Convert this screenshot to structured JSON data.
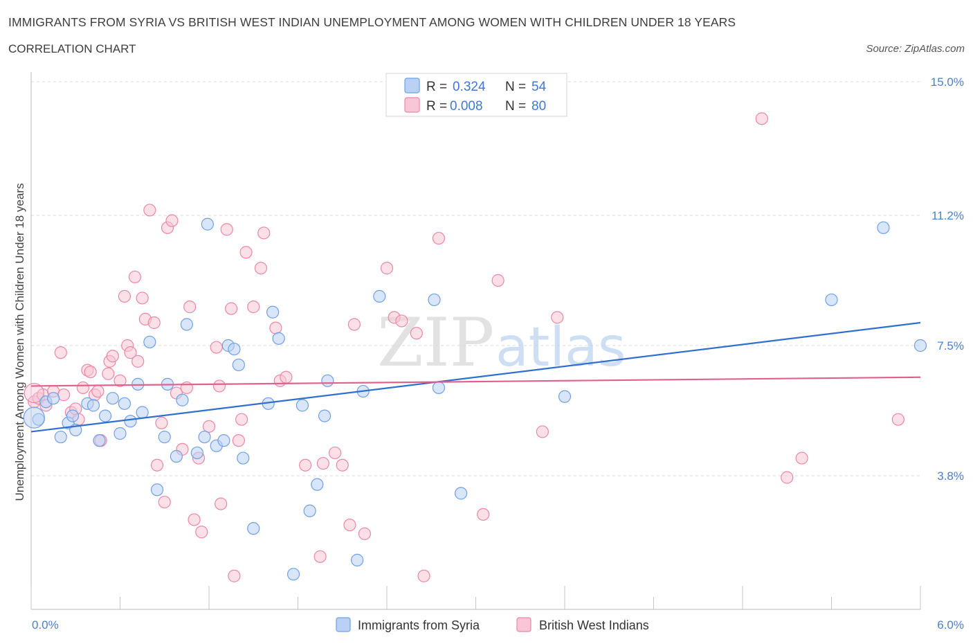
{
  "header": {
    "title": "IMMIGRANTS FROM SYRIA VS BRITISH WEST INDIAN UNEMPLOYMENT AMONG WOMEN WITH CHILDREN UNDER 18 YEARS",
    "subtitle": "CORRELATION CHART",
    "source": "Source: ZipAtlas.com"
  },
  "watermark": {
    "zip": "ZIP",
    "atlas": "atlas"
  },
  "colors": {
    "syria": "#6f9fe6",
    "syria_fill": "#b9d1f5",
    "syria_line": "#2f6fd0",
    "bwi": "#ec86a6",
    "bwi_fill": "#f8c6d6",
    "bwi_line": "#e0628c",
    "grid": "#d8d8d8",
    "tick_text": "#4a7fd0"
  },
  "legend_top": {
    "rows": [
      {
        "r_label": "R =",
        "r_value": "0.324",
        "n_label": "N =",
        "n_value": "54"
      },
      {
        "r_label": "R =",
        "r_value": "0.008",
        "n_label": "N =",
        "n_value": "80"
      }
    ]
  },
  "legend_bottom": {
    "items": [
      "Immigrants from Syria",
      "British West Indians"
    ]
  },
  "chart_data": {
    "type": "scatter",
    "title": "IMMIGRANTS FROM SYRIA VS BRITISH WEST INDIAN UNEMPLOYMENT AMONG WOMEN WITH CHILDREN UNDER 18 YEARS",
    "subtitle": "CORRELATION CHART",
    "ylabel": "Unemployment Among Women with Children Under 18 years",
    "xlabel": "",
    "xlim": [
      0,
      6.0
    ],
    "ylim": [
      0,
      15.0
    ],
    "x_tick_labels": [
      "0.0%",
      "6.0%"
    ],
    "y_tick_values": [
      3.8,
      7.5,
      11.2,
      15.0
    ],
    "y_tick_labels": [
      "3.8%",
      "7.5%",
      "11.2%",
      "15.0%"
    ],
    "grid": "horizontal dashed",
    "legend_position": "top-center",
    "series": [
      {
        "name": "Immigrants from Syria",
        "R": 0.324,
        "N": 54,
        "trend": [
          [
            0,
            5.05
          ],
          [
            6.0,
            8.15
          ]
        ],
        "points": [
          [
            0.05,
            5.4
          ],
          [
            0.1,
            5.9
          ],
          [
            0.15,
            6.0
          ],
          [
            0.2,
            4.9
          ],
          [
            0.25,
            5.3
          ],
          [
            0.28,
            5.5
          ],
          [
            0.3,
            5.1
          ],
          [
            0.38,
            5.85
          ],
          [
            0.42,
            5.8
          ],
          [
            0.46,
            4.8
          ],
          [
            0.5,
            5.5
          ],
          [
            0.55,
            6.0
          ],
          [
            0.6,
            5.0
          ],
          [
            0.63,
            5.85
          ],
          [
            0.67,
            5.35
          ],
          [
            0.72,
            6.4
          ],
          [
            0.75,
            5.6
          ],
          [
            0.8,
            7.6
          ],
          [
            0.85,
            3.4
          ],
          [
            0.9,
            4.9
          ],
          [
            0.92,
            6.4
          ],
          [
            0.98,
            4.35
          ],
          [
            1.02,
            5.95
          ],
          [
            1.05,
            8.1
          ],
          [
            1.12,
            4.45
          ],
          [
            1.17,
            4.9
          ],
          [
            1.19,
            10.95
          ],
          [
            1.25,
            4.65
          ],
          [
            1.3,
            4.8
          ],
          [
            1.33,
            7.5
          ],
          [
            1.37,
            7.4
          ],
          [
            1.4,
            6.95
          ],
          [
            1.43,
            4.3
          ],
          [
            1.5,
            2.3
          ],
          [
            1.6,
            5.85
          ],
          [
            1.63,
            8.45
          ],
          [
            1.67,
            7.7
          ],
          [
            1.77,
            1.0
          ],
          [
            1.83,
            5.8
          ],
          [
            1.88,
            2.8
          ],
          [
            1.93,
            3.55
          ],
          [
            1.98,
            5.5
          ],
          [
            2.0,
            6.5
          ],
          [
            2.2,
            1.4
          ],
          [
            2.24,
            6.2
          ],
          [
            2.35,
            8.9
          ],
          [
            2.72,
            8.8
          ],
          [
            2.75,
            6.3
          ],
          [
            2.9,
            3.3
          ],
          [
            3.6,
            6.05
          ],
          [
            5.4,
            8.8
          ],
          [
            5.75,
            10.85
          ],
          [
            6.0,
            7.5
          ]
        ]
      },
      {
        "name": "British West Indians",
        "R": 0.008,
        "N": 80,
        "trend": [
          [
            0,
            6.35
          ],
          [
            6.0,
            6.6
          ]
        ],
        "points": [
          [
            0.02,
            5.9
          ],
          [
            0.05,
            6.0
          ],
          [
            0.08,
            6.1
          ],
          [
            0.1,
            5.8
          ],
          [
            0.15,
            6.2
          ],
          [
            0.2,
            7.3
          ],
          [
            0.22,
            6.1
          ],
          [
            0.27,
            5.6
          ],
          [
            0.3,
            5.7
          ],
          [
            0.32,
            5.4
          ],
          [
            0.35,
            6.3
          ],
          [
            0.38,
            6.8
          ],
          [
            0.4,
            6.75
          ],
          [
            0.43,
            6.1
          ],
          [
            0.45,
            6.2
          ],
          [
            0.47,
            4.8
          ],
          [
            0.52,
            6.7
          ],
          [
            0.53,
            7.05
          ],
          [
            0.55,
            7.2
          ],
          [
            0.6,
            6.5
          ],
          [
            0.63,
            8.9
          ],
          [
            0.65,
            7.5
          ],
          [
            0.67,
            7.3
          ],
          [
            0.7,
            9.45
          ],
          [
            0.72,
            7.05
          ],
          [
            0.75,
            8.85
          ],
          [
            0.77,
            8.25
          ],
          [
            0.8,
            11.35
          ],
          [
            0.83,
            8.15
          ],
          [
            0.85,
            4.1
          ],
          [
            0.88,
            5.3
          ],
          [
            0.9,
            3.05
          ],
          [
            0.92,
            10.85
          ],
          [
            0.95,
            11.05
          ],
          [
            0.98,
            6.15
          ],
          [
            1.02,
            4.55
          ],
          [
            1.05,
            6.3
          ],
          [
            1.07,
            8.6
          ],
          [
            1.1,
            2.55
          ],
          [
            1.13,
            4.3
          ],
          [
            1.15,
            2.2
          ],
          [
            1.2,
            5.2
          ],
          [
            1.25,
            7.45
          ],
          [
            1.27,
            6.35
          ],
          [
            1.28,
            3.0
          ],
          [
            1.32,
            10.8
          ],
          [
            1.35,
            8.55
          ],
          [
            1.37,
            0.95
          ],
          [
            1.4,
            4.8
          ],
          [
            1.42,
            5.4
          ],
          [
            1.45,
            10.15
          ],
          [
            1.5,
            8.6
          ],
          [
            1.55,
            9.7
          ],
          [
            1.57,
            10.7
          ],
          [
            1.65,
            8.0
          ],
          [
            1.68,
            6.5
          ],
          [
            1.72,
            6.6
          ],
          [
            1.85,
            4.1
          ],
          [
            1.95,
            1.5
          ],
          [
            1.97,
            4.15
          ],
          [
            2.05,
            4.45
          ],
          [
            2.1,
            4.1
          ],
          [
            2.15,
            2.4
          ],
          [
            2.18,
            8.1
          ],
          [
            2.25,
            2.15
          ],
          [
            2.4,
            9.7
          ],
          [
            2.45,
            8.3
          ],
          [
            2.5,
            8.2
          ],
          [
            2.6,
            7.85
          ],
          [
            2.65,
            0.95
          ],
          [
            2.75,
            10.55
          ],
          [
            3.05,
            2.7
          ],
          [
            3.15,
            9.35
          ],
          [
            3.45,
            5.05
          ],
          [
            3.55,
            8.3
          ],
          [
            4.93,
            13.95
          ],
          [
            5.1,
            3.75
          ],
          [
            5.2,
            4.3
          ],
          [
            5.85,
            5.4
          ]
        ]
      }
    ]
  }
}
